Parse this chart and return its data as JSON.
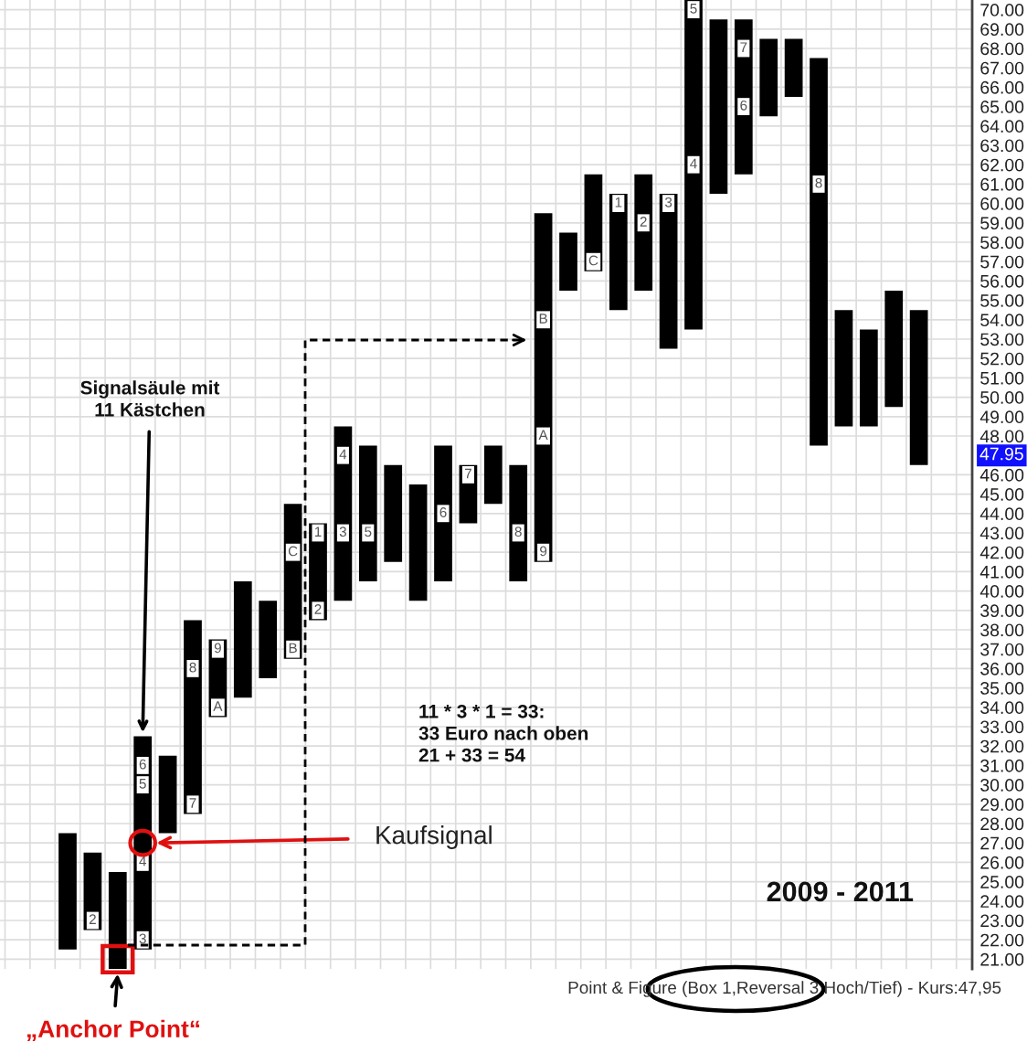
{
  "chart_data": {
    "type": "bar",
    "title": "2009 - 2011",
    "annotations": [
      "Signalsäule mit\n11 Kästchen",
      "11 * 3 * 1 = 33:\n33 Euro nach oben\n21 + 33 = 54",
      "Kaufsignal",
      "„Anchor Point“",
      "Point & Figure (Box 1,Reversal 3 Hoch/Tief) - Kurs:47,95",
      "47.95",
      {
        "text": "2",
        "y": 23
      },
      {
        "text": "3",
        "y": 22
      },
      {
        "text": "4",
        "y": 26
      },
      {
        "text": "5",
        "y": 30
      },
      {
        "text": "6",
        "y": 31
      },
      {
        "text": "7",
        "y": 29
      },
      {
        "text": "8",
        "y": 36
      },
      {
        "text": "9",
        "y": 37
      },
      {
        "text": "A",
        "y": 34
      },
      {
        "text": "B",
        "y": 37
      },
      {
        "text": "C",
        "y": 42
      },
      {
        "text": "1",
        "y": 43
      },
      {
        "text": "2",
        "y": 39
      },
      {
        "text": "3",
        "y": 43
      },
      {
        "text": "4",
        "y": 47
      },
      {
        "text": "5",
        "y": 43
      },
      {
        "text": "6",
        "y": 44
      },
      {
        "text": "7",
        "y": 46
      },
      {
        "text": "8",
        "y": 43
      },
      {
        "text": "9",
        "y": 42
      },
      {
        "text": "A",
        "y": 48
      },
      {
        "text": "B",
        "y": 54
      },
      {
        "text": "C",
        "y": 57
      },
      {
        "text": "1",
        "y": 60
      },
      {
        "text": "2",
        "y": 59
      },
      {
        "text": "3",
        "y": 60
      },
      {
        "text": "4",
        "y": 62
      },
      {
        "text": "5",
        "y": 70
      },
      {
        "text": "6",
        "y": 65
      },
      {
        "text": "7",
        "y": 68
      },
      {
        "text": "8",
        "y": 61
      }
    ],
    "categories": [
      null,
      null,
      null,
      null,
      null,
      null,
      null,
      null,
      null,
      null,
      null,
      null,
      null,
      null,
      null,
      null,
      null,
      null,
      null,
      null,
      null,
      null,
      null,
      null,
      null,
      null,
      null,
      null,
      null,
      null,
      null,
      null,
      null,
      null,
      null
    ],
    "base": [
      21.5,
      22.5,
      20.5,
      21.5,
      27.5,
      28.5,
      33.5,
      34.5,
      35.5,
      36.5,
      38.5,
      39.5,
      40.5,
      41.5,
      39.5,
      40.5,
      43.5,
      44.5,
      40.5,
      41.5,
      55.5,
      56.5,
      54.5,
      55.5,
      52.5,
      53.5,
      60.5,
      61.5,
      64.5,
      65.5,
      47.5,
      48.5,
      48.5,
      49.5,
      46.5
    ],
    "values": [
      6,
      4,
      5,
      11,
      4,
      10,
      4,
      6,
      4,
      8,
      5,
      9,
      7,
      5,
      6,
      7,
      3,
      3,
      6,
      18,
      3,
      5,
      6,
      6,
      8,
      17,
      9,
      8,
      4,
      3,
      20,
      6,
      5,
      6,
      8
    ],
    "color": "#000000",
    "ylim": [
      20.5,
      70.5
    ],
    "yticks": [
      {
        "value": 21,
        "label": "21.00"
      },
      {
        "value": 22,
        "label": "22.00"
      },
      {
        "value": 23,
        "label": "23.00"
      },
      {
        "value": 24,
        "label": "24.00"
      },
      {
        "value": 25,
        "label": "25.00"
      },
      {
        "value": 26,
        "label": "26.00"
      },
      {
        "value": 27,
        "label": "27.00"
      },
      {
        "value": 28,
        "label": "28.00"
      },
      {
        "value": 29,
        "label": "29.00"
      },
      {
        "value": 30,
        "label": "30.00"
      },
      {
        "value": 31,
        "label": "31.00"
      },
      {
        "value": 32,
        "label": "32.00"
      },
      {
        "value": 33,
        "label": "33.00"
      },
      {
        "value": 34,
        "label": "34.00"
      },
      {
        "value": 35,
        "label": "35.00"
      },
      {
        "value": 36,
        "label": "36.00"
      },
      {
        "value": 37,
        "label": "37.00"
      },
      {
        "value": 38,
        "label": "38.00"
      },
      {
        "value": 39,
        "label": "39.00"
      },
      {
        "value": 40,
        "label": "40.00"
      },
      {
        "value": 41,
        "label": "41.00"
      },
      {
        "value": 42,
        "label": "42.00"
      },
      {
        "value": 43,
        "label": "43.00"
      },
      {
        "value": 44,
        "label": "44.00"
      },
      {
        "value": 45,
        "label": "45.00"
      },
      {
        "value": 46,
        "label": "46.00"
      },
      {
        "value": 48,
        "label": "48.00"
      },
      {
        "value": 49,
        "label": "49.00"
      },
      {
        "value": 50,
        "label": "50.00"
      },
      {
        "value": 51,
        "label": "51.00"
      },
      {
        "value": 52,
        "label": "52.00"
      },
      {
        "value": 53,
        "label": "53.00"
      },
      {
        "value": 54,
        "label": "54.00"
      },
      {
        "value": 55,
        "label": "55.00"
      },
      {
        "value": 56,
        "label": "56.00"
      },
      {
        "value": 57,
        "label": "57.00"
      },
      {
        "value": 58,
        "label": "58.00"
      },
      {
        "value": 59,
        "label": "59.00"
      },
      {
        "value": 60,
        "label": "60.00"
      },
      {
        "value": 61,
        "label": "61.00"
      },
      {
        "value": 62,
        "label": "62.00"
      },
      {
        "value": 63,
        "label": "63.00"
      },
      {
        "value": 64,
        "label": "64.00"
      },
      {
        "value": 65,
        "label": "65.00"
      },
      {
        "value": 66,
        "label": "66.00"
      },
      {
        "value": 67,
        "label": "67.00"
      },
      {
        "value": 68,
        "label": "68.00"
      },
      {
        "value": 69,
        "label": "69.00"
      },
      {
        "value": 70,
        "label": "70.00"
      }
    ],
    "tick_labels": "y",
    "grid": true
  }
}
